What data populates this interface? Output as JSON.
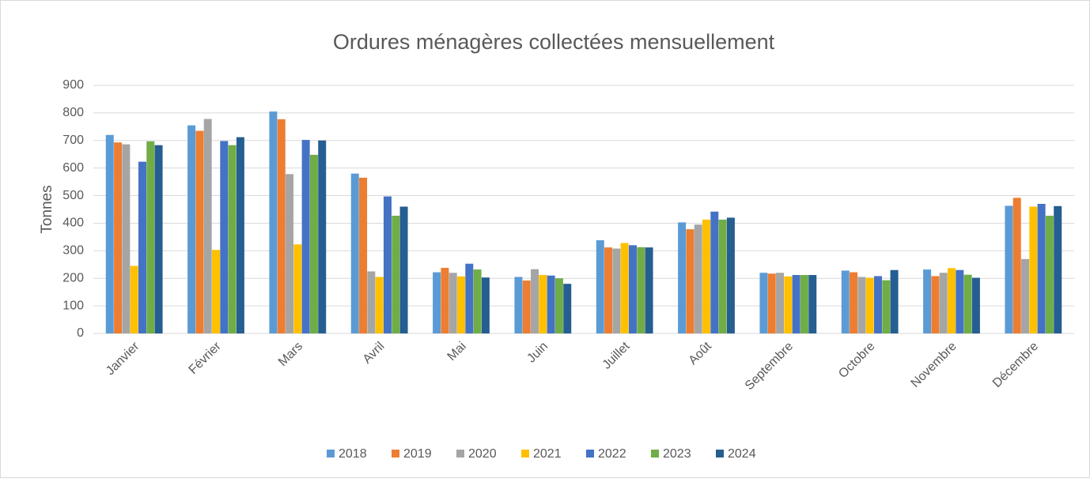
{
  "chart_data": {
    "type": "bar",
    "title": "Ordures ménagères collectées mensuellement",
    "y_label": "Tonnes",
    "categories": [
      "Janvier",
      "Février",
      "Mars",
      "Avril",
      "Mai",
      "Juin",
      "Juillet",
      "Août",
      "Septembre",
      "Octobre",
      "Novembre",
      "Décembre"
    ],
    "series": [
      {
        "name": "2018",
        "color": "#5b9bd5",
        "values": [
          720,
          755,
          805,
          580,
          222,
          205,
          338,
          403,
          220,
          228,
          232,
          463
        ]
      },
      {
        "name": "2019",
        "color": "#ed7d31",
        "values": [
          693,
          735,
          777,
          565,
          238,
          192,
          312,
          378,
          217,
          222,
          208,
          492
        ]
      },
      {
        "name": "2020",
        "color": "#a5a5a5",
        "values": [
          686,
          778,
          578,
          225,
          220,
          233,
          308,
          395,
          220,
          205,
          220,
          270
        ]
      },
      {
        "name": "2021",
        "color": "#ffc000",
        "values": [
          245,
          303,
          323,
          205,
          207,
          212,
          328,
          413,
          207,
          202,
          237,
          460
        ]
      },
      {
        "name": "2022",
        "color": "#4472c4",
        "values": [
          623,
          698,
          702,
          497,
          253,
          210,
          320,
          442,
          212,
          208,
          230,
          470
        ]
      },
      {
        "name": "2023",
        "color": "#70ad47",
        "values": [
          697,
          683,
          648,
          427,
          232,
          200,
          313,
          413,
          212,
          193,
          213,
          427
        ]
      },
      {
        "name": "2024",
        "color": "#255e91",
        "values": [
          683,
          712,
          700,
          460,
          203,
          180,
          312,
          420,
          212,
          230,
          202,
          462
        ]
      }
    ],
    "ylim": [
      0,
      900
    ],
    "yticks": [
      0,
      100,
      200,
      300,
      400,
      500,
      600,
      700,
      800,
      900
    ],
    "grid": true,
    "legend": "bottom"
  }
}
